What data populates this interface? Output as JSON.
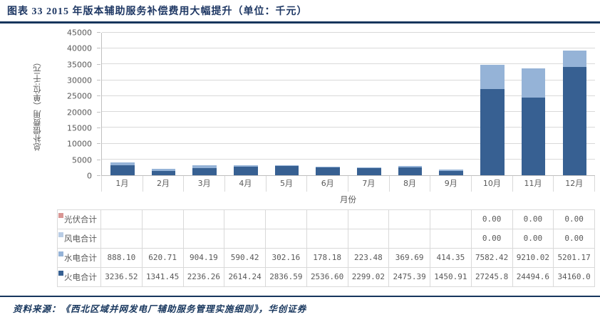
{
  "header": {
    "title": "图表 33  2015 年版本辅助服务补偿费用大幅提升（单位：千元）"
  },
  "footer": {
    "source": "资料来源：《西北区域并网发电厂辅助服务管理实施细则》，华创证券"
  },
  "colors": {
    "navy_rule": "#17365D",
    "title_text": "#1F3864",
    "pv": "#D99694",
    "wind": "#B9CDE5",
    "hydro": "#95B3D7",
    "thermal": "#376092",
    "grid": "#D9D9D9",
    "axis_line": "#BFBFBF",
    "tick_text": "#595959"
  },
  "chart_data": {
    "type": "bar",
    "stacked": true,
    "title": "2015 年版本辅助服务补偿费用大幅提升（单位：千元）",
    "xlabel": "月份",
    "ylabel": "总补偿费用（单位:千元）",
    "ylim": [
      0,
      45000
    ],
    "ytick_step": 5000,
    "yticks": [
      "0",
      "5000",
      "10000",
      "15000",
      "20000",
      "25000",
      "30000",
      "35000",
      "40000",
      "45000"
    ],
    "grid": true,
    "legend_position": "table-left",
    "categories": [
      "1月",
      "2月",
      "3月",
      "4月",
      "5月",
      "6月",
      "7月",
      "8月",
      "9月",
      "10月",
      "11月",
      "12月"
    ],
    "series": [
      {
        "name": "光伏合计",
        "color_key": "pv",
        "values": [
          0,
          0,
          0,
          0,
          0,
          0,
          0,
          0,
          0,
          0,
          0,
          0
        ]
      },
      {
        "name": "风电合计",
        "color_key": "wind",
        "values": [
          0,
          0,
          0,
          0,
          0,
          0,
          0,
          0,
          0,
          0,
          0,
          0
        ]
      },
      {
        "name": "水电合计",
        "color_key": "hydro",
        "values": [
          888.1,
          620.71,
          904.19,
          590.42,
          302.16,
          178.18,
          223.48,
          369.69,
          414.35,
          7582.42,
          9210.02,
          5201.17
        ]
      },
      {
        "name": "火电合计",
        "color_key": "thermal",
        "values": [
          3236.52,
          1341.45,
          2236.26,
          2614.24,
          2836.59,
          2536.6,
          2299.02,
          2475.39,
          1450.91,
          27245.8,
          24494.6,
          34160.0
        ]
      }
    ]
  },
  "table": {
    "rows": [
      {
        "name": "光伏合计",
        "color_key": "pv",
        "cells": [
          "",
          "",
          "",
          "",
          "",
          "",
          "",
          "",
          "",
          "0.00",
          "0.00",
          "0.00"
        ]
      },
      {
        "name": "风电合计",
        "color_key": "wind",
        "cells": [
          "",
          "",
          "",
          "",
          "",
          "",
          "",
          "",
          "",
          "0.00",
          "0.00",
          "0.00"
        ]
      },
      {
        "name": "水电合计",
        "color_key": "hydro",
        "cells": [
          "888.10",
          "620.71",
          "904.19",
          "590.42",
          "302.16",
          "178.18",
          "223.48",
          "369.69",
          "414.35",
          "7582.42",
          "9210.02",
          "5201.17"
        ]
      },
      {
        "name": "火电合计",
        "color_key": "thermal",
        "cells": [
          "3236.52",
          "1341.45",
          "2236.26",
          "2614.24",
          "2836.59",
          "2536.60",
          "2299.02",
          "2475.39",
          "1450.91",
          "27245.8",
          "24494.6",
          "34160.0"
        ]
      }
    ]
  }
}
